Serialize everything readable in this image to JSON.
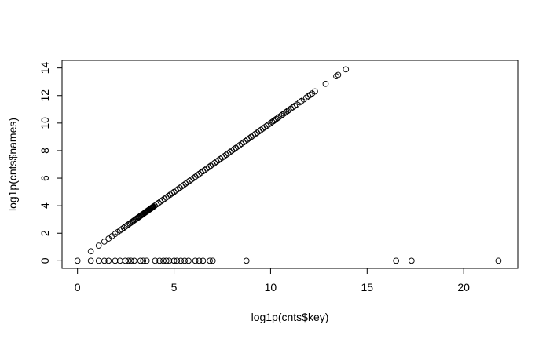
{
  "chart_data": {
    "type": "scatter",
    "xlabel": "log1p(cnts$key)",
    "ylabel": "log1p(cnts$names)",
    "xlim": [
      -0.8,
      22.8
    ],
    "ylim": [
      -0.55,
      14.55
    ],
    "xticks": [
      0,
      5,
      10,
      15,
      20
    ],
    "yticks": [
      0,
      2,
      4,
      6,
      8,
      10,
      12,
      14
    ],
    "xtick_labels": [
      "0",
      "5",
      "10",
      "15",
      "20"
    ],
    "ytick_labels": [
      "0",
      "2",
      "4",
      "6",
      "8",
      "10",
      "12",
      "14"
    ],
    "marker": "open-circle",
    "grid": false,
    "series": [
      {
        "points_diagonal": {
          "description_rule": "points lie on y = x",
          "x": [
            0.69,
            1.1,
            1.39,
            1.61,
            1.79,
            1.95,
            2.08,
            2.2,
            2.3,
            2.4,
            2.48,
            2.56,
            2.64,
            2.71,
            2.77,
            2.83,
            2.89,
            2.94,
            3.0,
            3.04,
            3.09,
            3.14,
            3.18,
            3.22,
            3.26,
            3.3,
            3.33,
            3.37,
            3.4,
            3.43,
            3.47,
            3.5,
            3.53,
            3.56,
            3.58,
            3.61,
            3.64,
            3.66,
            3.69,
            3.71,
            3.74,
            3.76,
            3.78,
            3.81,
            3.83,
            3.85,
            3.87,
            3.89,
            3.91,
            3.93,
            4.0,
            4.1,
            4.2,
            4.3,
            4.4,
            4.5,
            4.6,
            4.7,
            4.8,
            4.9,
            5.0,
            5.1,
            5.2,
            5.3,
            5.4,
            5.5,
            5.6,
            5.7,
            5.8,
            5.9,
            6.0,
            6.1,
            6.2,
            6.3,
            6.4,
            6.5,
            6.6,
            6.7,
            6.8,
            6.9,
            7.0,
            7.1,
            7.2,
            7.3,
            7.4,
            7.5,
            7.6,
            7.7,
            7.8,
            7.9,
            8.0,
            8.1,
            8.2,
            8.3,
            8.4,
            8.5,
            8.6,
            8.7,
            8.8,
            8.9,
            9.0,
            9.1,
            9.2,
            9.3,
            9.4,
            9.5,
            9.6,
            9.7,
            9.8,
            9.9,
            10.0,
            10.08,
            10.15,
            10.22,
            10.3,
            10.38,
            10.45,
            10.55,
            10.62,
            10.7,
            10.8,
            10.88,
            10.95,
            11.05,
            11.15,
            11.25,
            11.35,
            11.5,
            11.6,
            11.72,
            11.85,
            11.95,
            12.05,
            12.15,
            12.3,
            12.85,
            13.4,
            13.5,
            13.9
          ]
        },
        "points_zero": {
          "description_rule": "points at y = 0",
          "x": [
            0.0,
            0.69,
            1.1,
            1.39,
            1.61,
            1.95,
            2.2,
            2.48,
            2.64,
            2.77,
            2.94,
            3.26,
            3.4,
            3.58,
            4.02,
            4.25,
            4.45,
            4.6,
            4.75,
            5.0,
            5.15,
            5.35,
            5.55,
            5.75,
            6.1,
            6.3,
            6.5,
            6.85,
            7.0,
            8.75,
            16.5,
            17.3,
            21.8
          ]
        }
      }
    ]
  }
}
